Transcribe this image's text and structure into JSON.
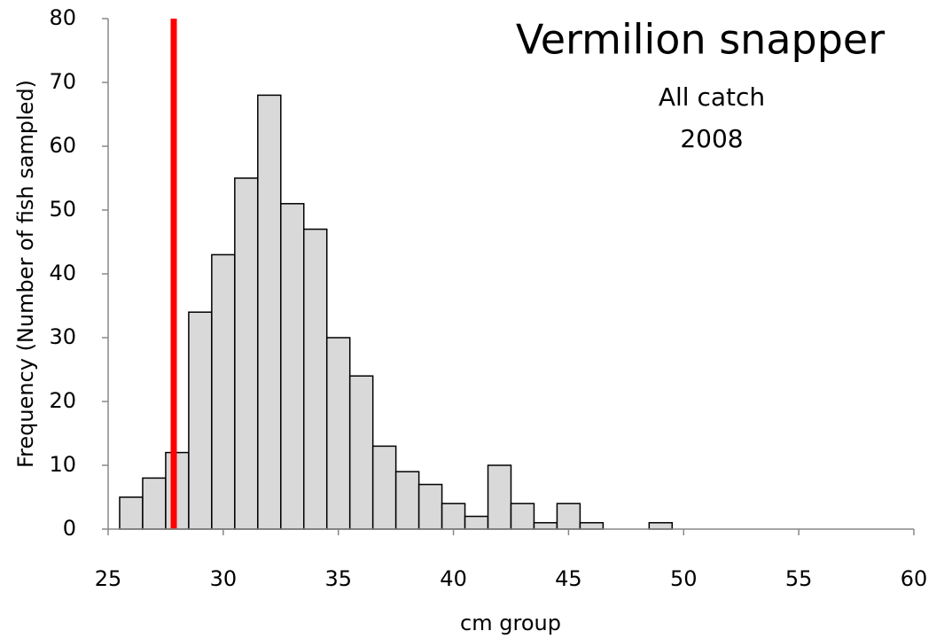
{
  "chart_data": {
    "type": "histogram",
    "title": "Vermilion snapper",
    "subtitle": [
      "All catch",
      "2008"
    ],
    "x_label": "cm group",
    "y_label": "Frequency (Number of fish sampled)",
    "bins": [
      25.5,
      26.5,
      27.5,
      28.5,
      29.5,
      30.5,
      31.5,
      32.5,
      33.5,
      34.5,
      35.5,
      36.5,
      37.5,
      38.5,
      39.5,
      40.5,
      41.5,
      42.5,
      43.5,
      44.5,
      45.5,
      46.5,
      47.5,
      48.5,
      49.5
    ],
    "counts": [
      5,
      8,
      12,
      34,
      43,
      55,
      68,
      51,
      47,
      30,
      24,
      13,
      9,
      7,
      4,
      2,
      10,
      4,
      1,
      4,
      1,
      0,
      0,
      1
    ],
    "color": "#d9d9d9",
    "edgecolor": "#000000",
    "reference_line": {
      "x": 27.85,
      "color": "#ff0000"
    },
    "xlim": [
      25,
      60
    ],
    "xticks": [
      25,
      30,
      35,
      40,
      45,
      50,
      55,
      60
    ],
    "ylim": [
      0,
      80
    ],
    "yticks": [
      0,
      10,
      20,
      30,
      40,
      50,
      60,
      70,
      80
    ],
    "grid": false
  }
}
